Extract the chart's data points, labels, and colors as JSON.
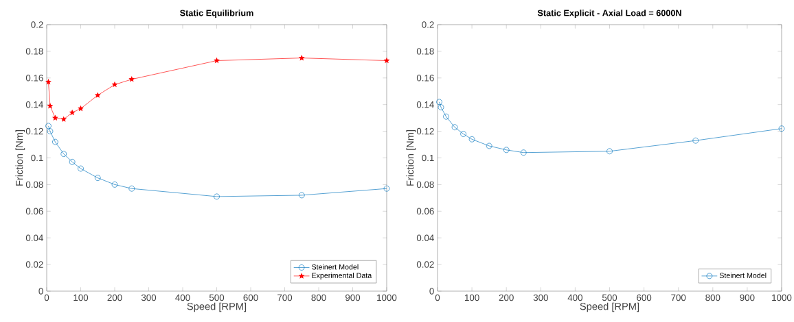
{
  "chart_data": [
    {
      "type": "line",
      "title": "Static Equilibrium",
      "xlabel": "Speed [RPM]",
      "ylabel": "Friction [Nm]",
      "x": [
        5,
        10,
        25,
        50,
        75,
        100,
        150,
        200,
        250,
        500,
        750,
        1000
      ],
      "series": [
        {
          "name": "Steinert Model",
          "color": "#0072bd",
          "marker": "circle",
          "line_style": "solid",
          "values": [
            0.124,
            0.12,
            0.112,
            0.103,
            0.097,
            0.092,
            0.085,
            0.08,
            0.077,
            0.071,
            0.072,
            0.077
          ]
        },
        {
          "name": "Experimental Data",
          "color": "#ff0000",
          "marker": "star",
          "line_style": "solid",
          "values": [
            0.157,
            0.139,
            0.13,
            0.129,
            0.134,
            0.137,
            0.147,
            0.155,
            0.159,
            0.173,
            0.175,
            0.173
          ]
        }
      ],
      "xlim": [
        0,
        1000
      ],
      "ylim": [
        0,
        0.2
      ],
      "xticks": [
        0,
        100,
        200,
        300,
        400,
        500,
        600,
        700,
        800,
        900,
        1000
      ],
      "yticks": [
        0,
        0.02,
        0.04,
        0.06,
        0.08,
        0.1,
        0.12,
        0.14,
        0.16,
        0.18,
        0.2
      ],
      "grid": false,
      "legend": "bottom right"
    },
    {
      "type": "line",
      "title": "Static Explicit - Axial Load = 6000N",
      "xlabel": "Speed [RPM]",
      "ylabel": "Friction [Nm]",
      "x": [
        5,
        10,
        25,
        50,
        75,
        100,
        150,
        200,
        250,
        500,
        750,
        1000
      ],
      "series": [
        {
          "name": "Steinert Model",
          "color": "#0072bd",
          "marker": "circle",
          "line_style": "solid",
          "values": [
            0.142,
            0.138,
            0.131,
            0.123,
            0.118,
            0.114,
            0.109,
            0.106,
            0.104,
            0.105,
            0.113,
            0.122
          ]
        }
      ],
      "xlim": [
        0,
        1000
      ],
      "ylim": [
        0,
        0.2
      ],
      "xticks": [
        0,
        100,
        200,
        300,
        400,
        500,
        600,
        700,
        800,
        900,
        1000
      ],
      "yticks": [
        0,
        0.02,
        0.04,
        0.06,
        0.08,
        0.1,
        0.12,
        0.14,
        0.16,
        0.18,
        0.2
      ],
      "grid": false,
      "legend": "bottom right"
    }
  ]
}
